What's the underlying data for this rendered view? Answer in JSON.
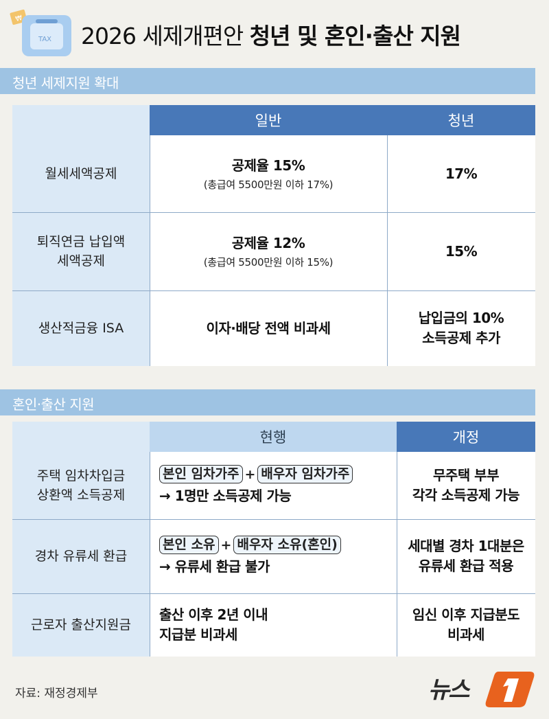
{
  "title": {
    "light": "2026 세제개편안",
    "bold": "청년 및 혼인·출산 지원"
  },
  "section1": {
    "label": "청년 세제지원 확대",
    "headers": [
      "일반",
      "청년"
    ],
    "rows": [
      {
        "label": "월세세액공제",
        "general_main": "공제율 15%",
        "general_sub": "(총급여 5500만원 이하 17%)",
        "youth": "17%"
      },
      {
        "label_line1": "퇴직연금 납입액",
        "label_line2": "세액공제",
        "general_main": "공제율 12%",
        "general_sub": "(총급여 5500만원 이하 15%)",
        "youth": "15%"
      },
      {
        "label": "생산적금융 ISA",
        "general_main": "이자·배당 전액 비과세",
        "youth_line1": "납입금의 10%",
        "youth_line2": "소득공제 추가"
      }
    ]
  },
  "section2": {
    "label": "혼인·출산 지원",
    "headers": [
      "현행",
      "개정"
    ],
    "rows": [
      {
        "label_line1": "주택 임차차입금",
        "label_line2": "상환액 소득공제",
        "pill1": "본인 임차가주",
        "plus": "+",
        "pill2": "배우자 임차가주",
        "current_line2": "→ 1명만 소득공제 가능",
        "revised_line1": "무주택 부부",
        "revised_line2": "각각 소득공제 가능"
      },
      {
        "label": "경차 유류세 환급",
        "pill1": "본인 소유",
        "plus": "+",
        "pill2": "배우자 소유(혼인)",
        "current_line2": "→ 유류세 환급 불가",
        "revised_line1": "세대별 경차 1대분은",
        "revised_line2": "유류세 환급 적용"
      },
      {
        "label": "근로자 출산지원금",
        "current_line1": "출산 이후 2년 이내",
        "current_line2": "지급분 비과세",
        "revised_line1": "임신 이후 지급분도",
        "revised_line2": "비과세"
      }
    ]
  },
  "source": "자료: 재정경제부",
  "brand": "뉴스1",
  "colors": {
    "header_blue": "#4878b8",
    "light_blue": "#dbe9f6",
    "section_bar": "#9ec3e3",
    "brand_orange": "#e8621e"
  }
}
